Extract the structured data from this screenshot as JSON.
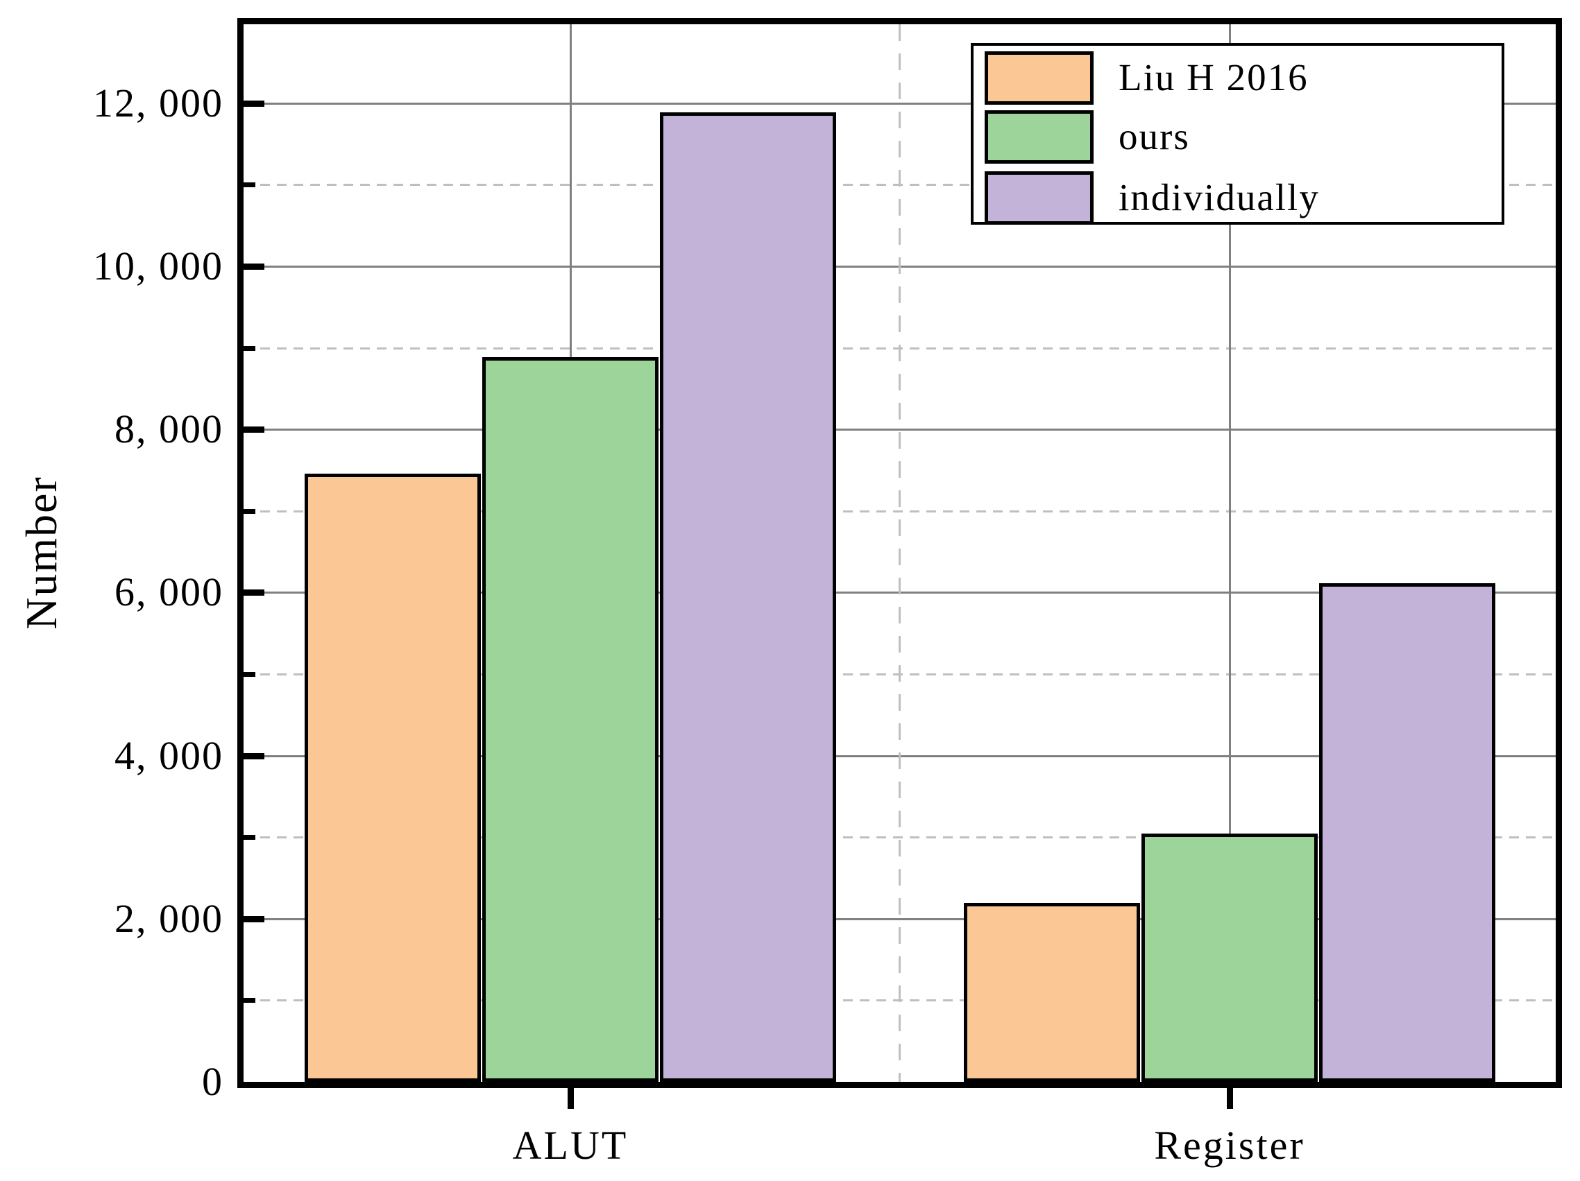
{
  "figure": {
    "background_color": "#ffffff",
    "frame_color": "#000000",
    "major_grid_color": "#808080",
    "minor_grid_color": "#bfbfbf"
  },
  "chart_data": {
    "type": "bar",
    "title": "",
    "xlabel": "",
    "ylabel": "Number",
    "categories": [
      "ALUT",
      "Register"
    ],
    "series": [
      {
        "name": "Liu H 2016",
        "color": "#FBC795",
        "values": [
          7460,
          2190
        ]
      },
      {
        "name": "ours",
        "color": "#9DD49A",
        "values": [
          8890,
          3040
        ]
      },
      {
        "name": "individually",
        "color": "#C3B3D8",
        "values": [
          11890,
          6110
        ]
      }
    ],
    "ylim": [
      0,
      12960
    ],
    "yticks": [
      {
        "value": 0,
        "label": "0"
      },
      {
        "value": 2000,
        "label": "2, 000"
      },
      {
        "value": 4000,
        "label": "4, 000"
      },
      {
        "value": 6000,
        "label": "6, 000"
      },
      {
        "value": 8000,
        "label": "8, 000"
      },
      {
        "value": 10000,
        "label": "10, 000"
      },
      {
        "value": 12000,
        "label": "12, 000"
      }
    ],
    "minor_yticks": [
      1000,
      3000,
      5000,
      7000,
      9000,
      11000
    ],
    "grid": {
      "horizontal_major": "solid gray",
      "horizontal_minor": "dashed light gray",
      "vertical_solid_at_group_centers": true,
      "vertical_dashed_at_category_boundary": true
    },
    "legend": {
      "position": "upper right",
      "entries": [
        "Liu H 2016",
        "ours",
        "individually"
      ]
    }
  }
}
